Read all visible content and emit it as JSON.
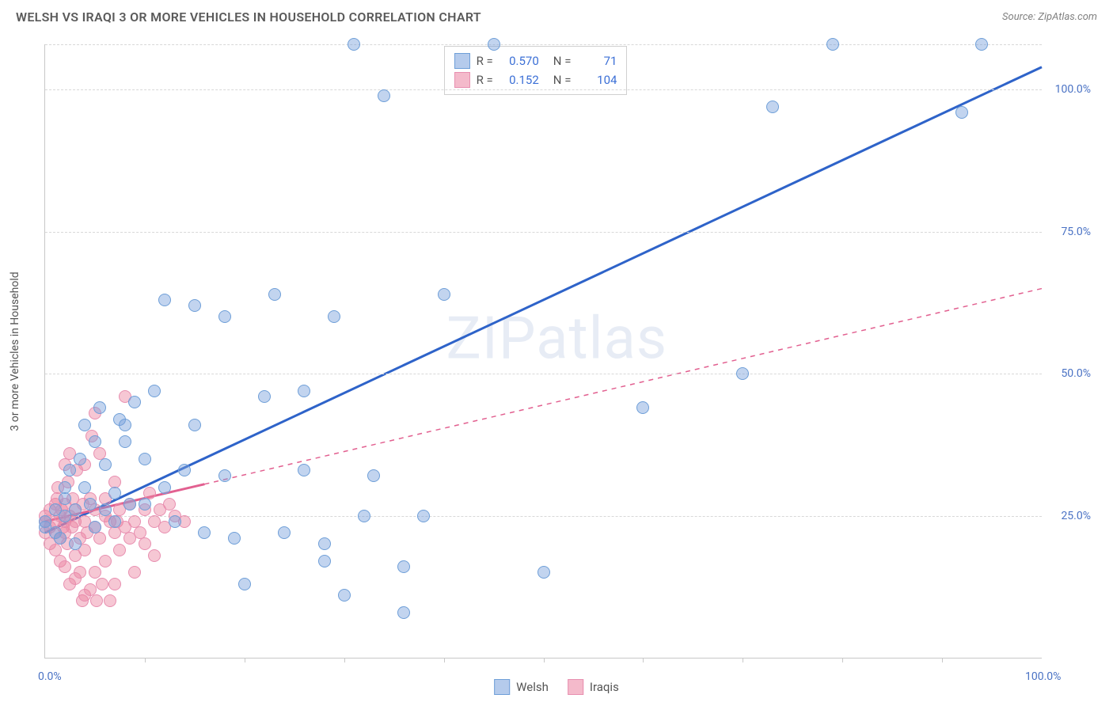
{
  "title": "WELSH VS IRAQI 3 OR MORE VEHICLES IN HOUSEHOLD CORRELATION CHART",
  "source": "Source: ZipAtlas.com",
  "watermark": "ZIPatlas",
  "chart": {
    "type": "scatter",
    "y_axis_title": "3 or more Vehicles in Household",
    "xlim": [
      0,
      100
    ],
    "ylim": [
      0,
      108
    ],
    "x_tick_label_min": "0.0%",
    "x_tick_label_max": "100.0%",
    "x_ticks": [
      10,
      20,
      30,
      40,
      50,
      60,
      70,
      80,
      90
    ],
    "y_gridlines": [
      {
        "value": 25,
        "label": "25.0%"
      },
      {
        "value": 50,
        "label": "50.0%"
      },
      {
        "value": 75,
        "label": "75.0%"
      },
      {
        "value": 100,
        "label": "100.0%"
      },
      {
        "value": 108,
        "label": null
      }
    ],
    "marker_radius": 8,
    "background_color": "#ffffff",
    "grid_color": "#d8d8d8",
    "axis_color": "#c8c8c8",
    "series": [
      {
        "name": "Welsh",
        "fill_color": "rgba(120,160,220,0.45)",
        "stroke_color": "#6f9fd8",
        "trend": {
          "x1": 0,
          "y1": 22,
          "x2": 100,
          "y2": 104,
          "stroke": "#2e63c9",
          "width": 3,
          "dashed": false,
          "solid_until_x": 100
        },
        "points": [
          [
            0,
            23
          ],
          [
            0,
            24
          ],
          [
            1,
            22
          ],
          [
            1,
            26
          ],
          [
            1.5,
            21
          ],
          [
            2,
            28
          ],
          [
            2,
            30
          ],
          [
            2,
            25
          ],
          [
            2.5,
            33
          ],
          [
            3,
            26
          ],
          [
            3,
            20
          ],
          [
            3.5,
            35
          ],
          [
            4,
            41
          ],
          [
            4,
            30
          ],
          [
            4.5,
            27
          ],
          [
            5,
            38
          ],
          [
            5,
            23
          ],
          [
            5.5,
            44
          ],
          [
            6,
            26
          ],
          [
            6,
            34
          ],
          [
            7,
            24
          ],
          [
            7,
            29
          ],
          [
            7.5,
            42
          ],
          [
            8,
            38
          ],
          [
            8,
            41
          ],
          [
            8.5,
            27
          ],
          [
            9,
            45
          ],
          [
            10,
            27
          ],
          [
            10,
            35
          ],
          [
            11,
            47
          ],
          [
            12,
            63
          ],
          [
            12,
            30
          ],
          [
            13,
            24
          ],
          [
            14,
            33
          ],
          [
            15,
            62
          ],
          [
            15,
            41
          ],
          [
            16,
            22
          ],
          [
            18,
            32
          ],
          [
            18,
            60
          ],
          [
            19,
            21
          ],
          [
            20,
            13
          ],
          [
            22,
            46
          ],
          [
            23,
            64
          ],
          [
            24,
            22
          ],
          [
            26,
            47
          ],
          [
            26,
            33
          ],
          [
            28,
            17
          ],
          [
            28,
            20
          ],
          [
            29,
            60
          ],
          [
            30,
            11
          ],
          [
            31,
            108
          ],
          [
            32,
            25
          ],
          [
            33,
            32
          ],
          [
            34,
            99
          ],
          [
            36,
            16
          ],
          [
            36,
            8
          ],
          [
            38,
            25
          ],
          [
            40,
            64
          ],
          [
            45,
            108
          ],
          [
            50,
            15
          ],
          [
            60,
            44
          ],
          [
            70,
            50
          ],
          [
            73,
            97
          ],
          [
            79,
            108
          ],
          [
            92,
            96
          ],
          [
            94,
            108
          ]
        ]
      },
      {
        "name": "Iraqis",
        "fill_color": "rgba(235,130,160,0.45)",
        "stroke_color": "#e88fb0",
        "trend": {
          "x1": 0,
          "y1": 24,
          "x2": 100,
          "y2": 65,
          "stroke": "#e26090",
          "width": 1.5,
          "dashed": true,
          "solid_until_x": 16
        },
        "points": [
          [
            0,
            22
          ],
          [
            0,
            24
          ],
          [
            0,
            25
          ],
          [
            0.5,
            23
          ],
          [
            0.5,
            20
          ],
          [
            0.5,
            26
          ],
          [
            1,
            24
          ],
          [
            1,
            22
          ],
          [
            1,
            27
          ],
          [
            1,
            19
          ],
          [
            1.2,
            28
          ],
          [
            1.3,
            30
          ],
          [
            1.5,
            21
          ],
          [
            1.5,
            25
          ],
          [
            1.5,
            17
          ],
          [
            1.7,
            26
          ],
          [
            1.8,
            23
          ],
          [
            2,
            34
          ],
          [
            2,
            24
          ],
          [
            2,
            27
          ],
          [
            2,
            22
          ],
          [
            2,
            16
          ],
          [
            2.2,
            20
          ],
          [
            2.3,
            31
          ],
          [
            2.5,
            13
          ],
          [
            2.5,
            25
          ],
          [
            2.5,
            36
          ],
          [
            2.7,
            23
          ],
          [
            2.8,
            28
          ],
          [
            3,
            18
          ],
          [
            3,
            26
          ],
          [
            3,
            24
          ],
          [
            3,
            14
          ],
          [
            3.2,
            33
          ],
          [
            3.5,
            21
          ],
          [
            3.5,
            15
          ],
          [
            3.7,
            10
          ],
          [
            3.8,
            27
          ],
          [
            4,
            24
          ],
          [
            4,
            19
          ],
          [
            4,
            11
          ],
          [
            4,
            34
          ],
          [
            4.2,
            22
          ],
          [
            4.5,
            12
          ],
          [
            4.5,
            28
          ],
          [
            4.7,
            39
          ],
          [
            5,
            23
          ],
          [
            5,
            43
          ],
          [
            5,
            26
          ],
          [
            5,
            15
          ],
          [
            5.2,
            10
          ],
          [
            5.5,
            21
          ],
          [
            5.5,
            36
          ],
          [
            5.7,
            13
          ],
          [
            6,
            25
          ],
          [
            6,
            17
          ],
          [
            6,
            28
          ],
          [
            6.5,
            24
          ],
          [
            6.5,
            10
          ],
          [
            7,
            22
          ],
          [
            7,
            31
          ],
          [
            7,
            13
          ],
          [
            7.2,
            24
          ],
          [
            7.5,
            19
          ],
          [
            7.5,
            26
          ],
          [
            8,
            23
          ],
          [
            8,
            46
          ],
          [
            8.5,
            21
          ],
          [
            8.5,
            27
          ],
          [
            9,
            24
          ],
          [
            9,
            15
          ],
          [
            9.5,
            22
          ],
          [
            10,
            26
          ],
          [
            10,
            20
          ],
          [
            10.5,
            29
          ],
          [
            11,
            24
          ],
          [
            11,
            18
          ],
          [
            11.5,
            26
          ],
          [
            12,
            23
          ],
          [
            12.5,
            27
          ],
          [
            13,
            25
          ],
          [
            14,
            24
          ]
        ]
      }
    ]
  },
  "legend_top": {
    "rows": [
      {
        "swatch_fill": "rgba(120,160,220,0.55)",
        "swatch_stroke": "#6f9fd8",
        "r_label": "R =",
        "r_value": "0.570",
        "n_label": "N =",
        "n_value": "71"
      },
      {
        "swatch_fill": "rgba(235,130,160,0.55)",
        "swatch_stroke": "#e88fb0",
        "r_label": "R =",
        "r_value": "0.152",
        "n_label": "N =",
        "n_value": "104"
      }
    ]
  },
  "legend_bottom": {
    "items": [
      {
        "swatch_fill": "rgba(120,160,220,0.55)",
        "swatch_stroke": "#6f9fd8",
        "label": "Welsh"
      },
      {
        "swatch_fill": "rgba(235,130,160,0.55)",
        "swatch_stroke": "#e88fb0",
        "label": "Iraqis"
      }
    ]
  }
}
